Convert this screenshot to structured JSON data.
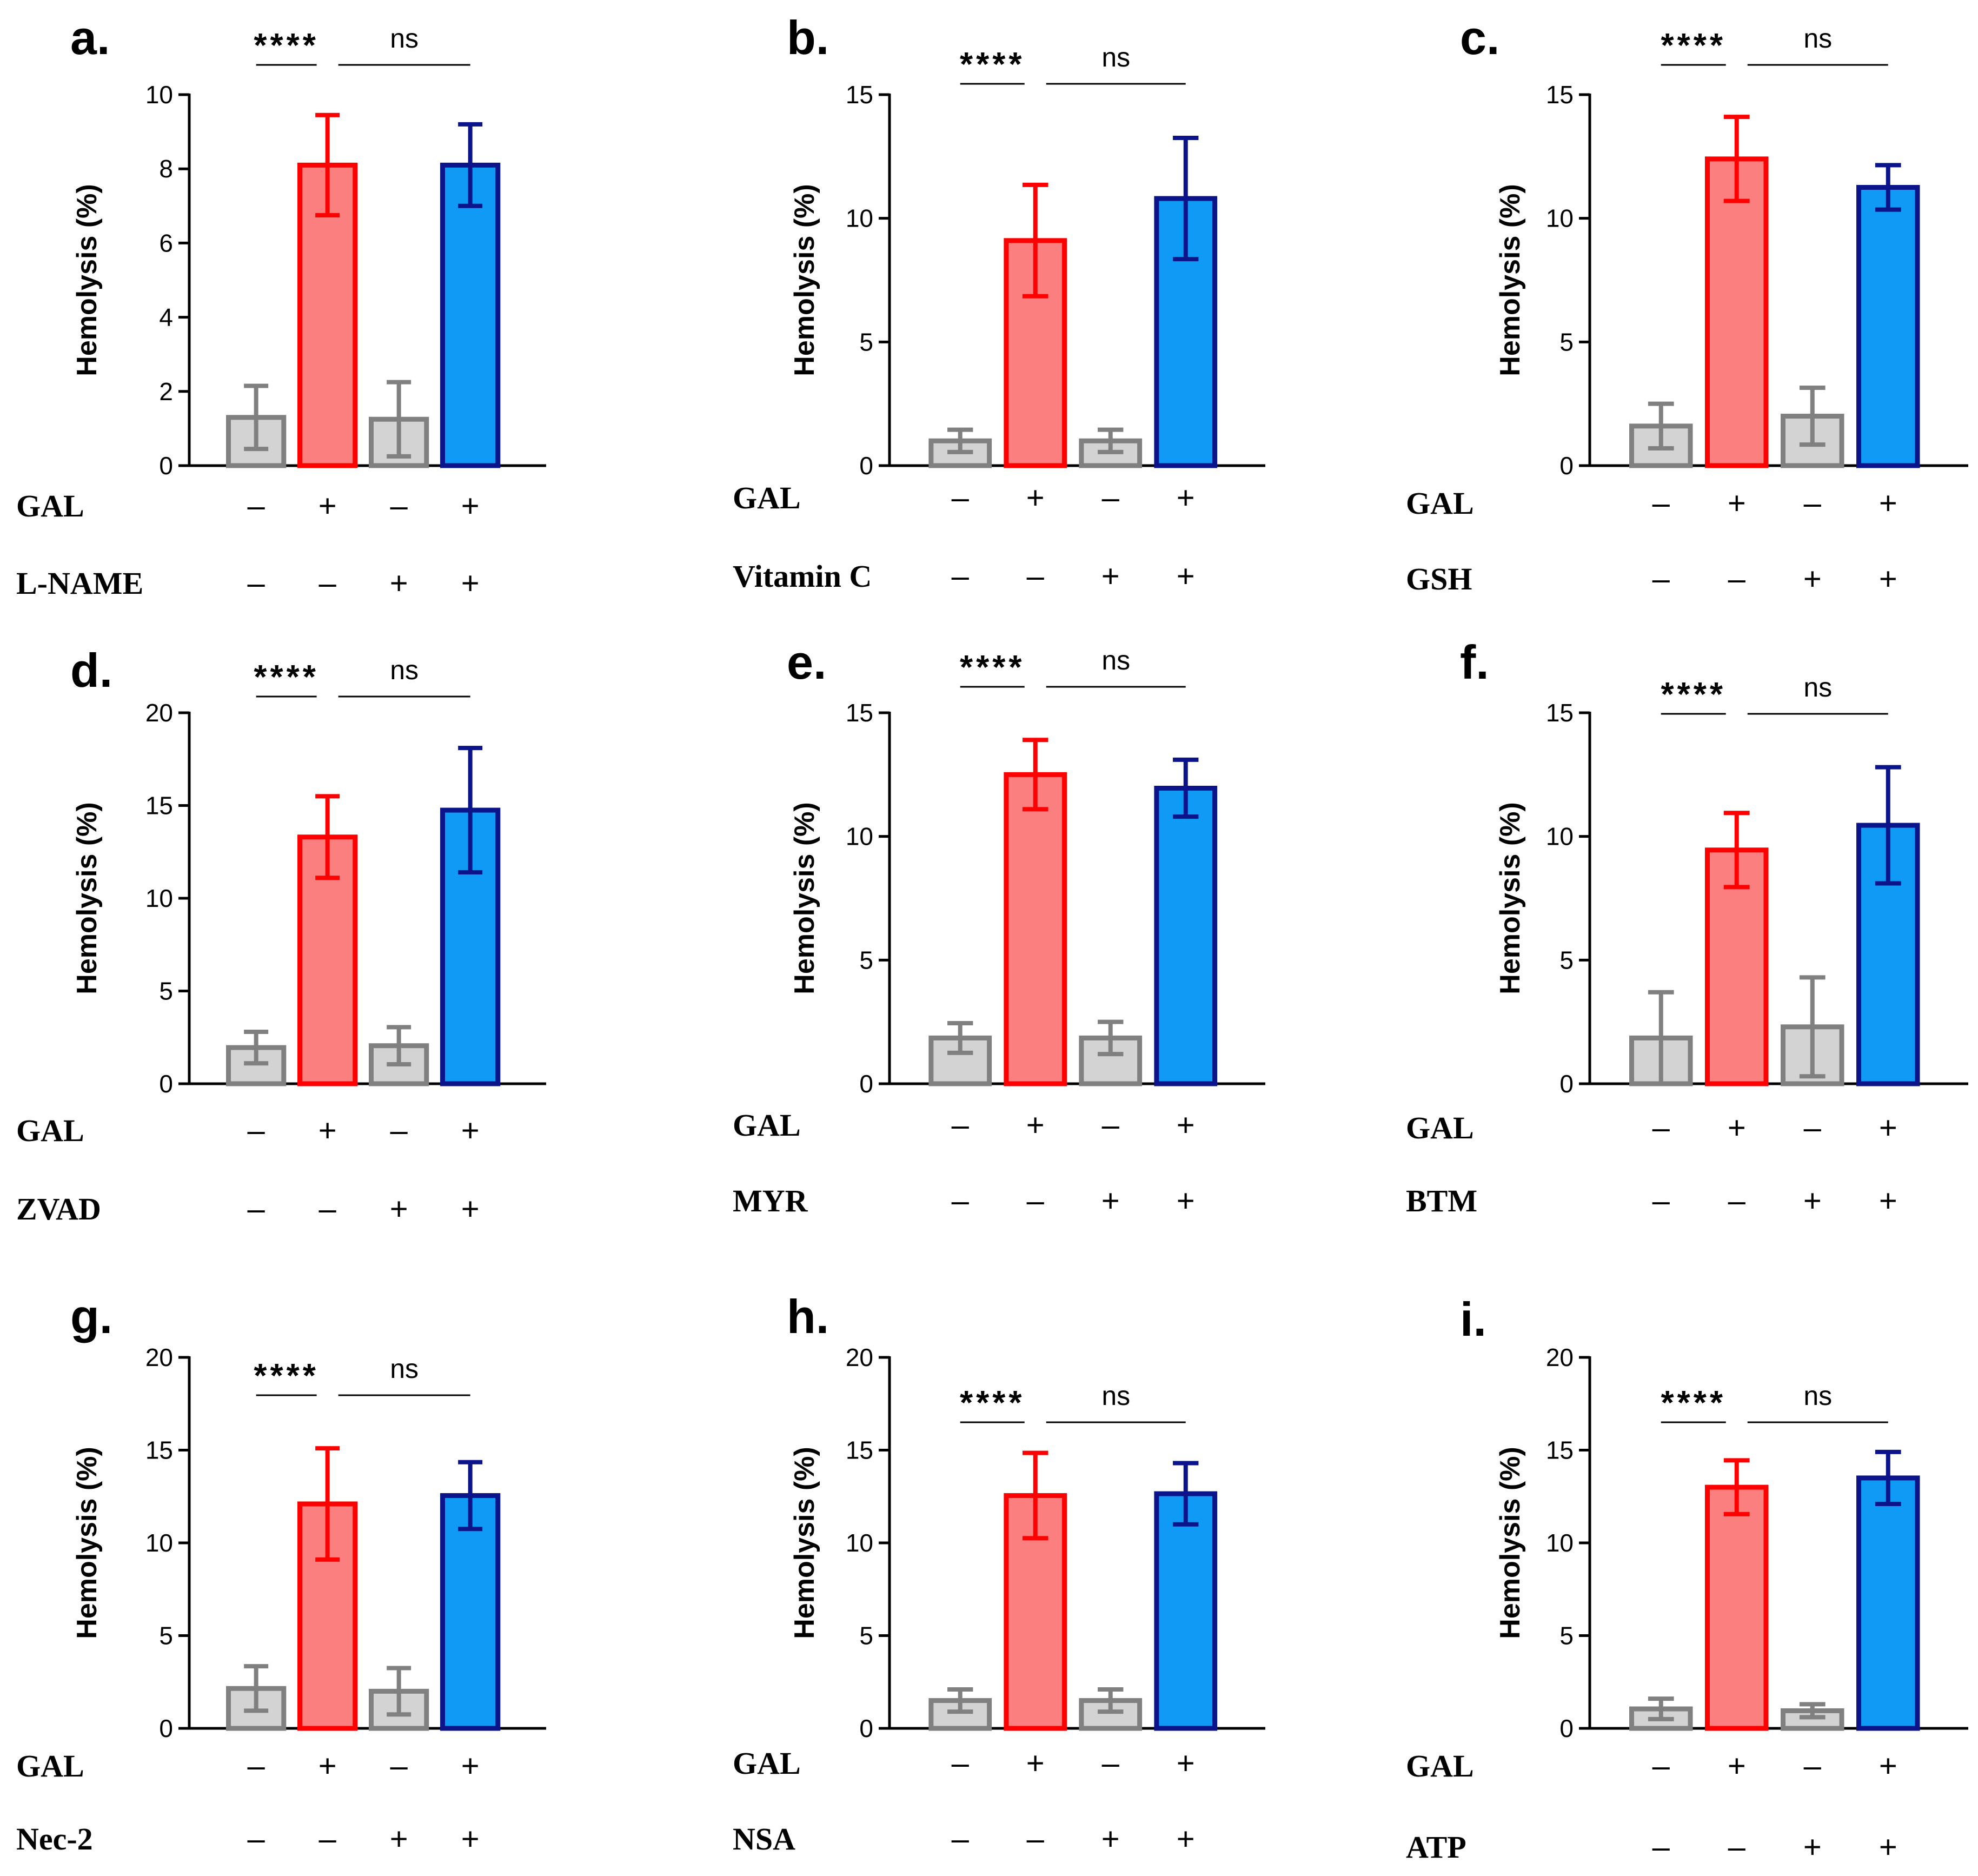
{
  "colors": {
    "control_fill": "#d3d3d3",
    "control_stroke": "#808080",
    "gal_fill": "#fb7f7f",
    "gal_stroke": "#ff0000",
    "combo_fill": "#0f9bf5",
    "combo_stroke": "#0b1488",
    "axis": "#000000"
  },
  "chart_data": [
    {
      "panel": "a.",
      "type": "bar",
      "ylabel": "Hemolysis (%)",
      "ylim": [
        0,
        10
      ],
      "yticks": [
        0,
        2,
        4,
        6,
        8,
        10
      ],
      "yticklabels": [
        "0",
        "2",
        "4",
        "6",
        "8",
        "10"
      ],
      "values": [
        1.3,
        8.1,
        1.25,
        8.1
      ],
      "errors": [
        0.85,
        1.35,
        1.0,
        1.1
      ],
      "significance": [
        "****",
        "ns"
      ],
      "rows": [
        {
          "label": "GAL",
          "signs": [
            "–",
            "+",
            "–",
            "+"
          ]
        },
        {
          "label": "L-NAME",
          "signs": [
            "–",
            "–",
            "+",
            "+"
          ]
        }
      ]
    },
    {
      "panel": "b.",
      "type": "bar",
      "ylabel": "Hemolysis (%)",
      "ylim": [
        0,
        15
      ],
      "yticks": [
        0,
        5,
        10,
        15
      ],
      "yticklabels": [
        "0",
        "5",
        "10",
        "15"
      ],
      "values": [
        1.0,
        9.1,
        1.0,
        10.8
      ],
      "errors": [
        0.45,
        2.25,
        0.45,
        2.45
      ],
      "significance": [
        "****",
        "ns"
      ],
      "rows": [
        {
          "label": "GAL",
          "signs": [
            "–",
            "+",
            "–",
            "+"
          ]
        },
        {
          "label": "Vitamin C",
          "signs": [
            "–",
            "–",
            "+",
            "+"
          ]
        }
      ]
    },
    {
      "panel": "c.",
      "type": "bar",
      "ylabel": "Hemolysis (%)",
      "ylim": [
        0,
        15
      ],
      "yticks": [
        0,
        5,
        10,
        15
      ],
      "yticklabels": [
        "0",
        "5",
        "10",
        "15"
      ],
      "values": [
        1.6,
        12.4,
        2.0,
        11.25
      ],
      "errors": [
        0.9,
        1.7,
        1.15,
        0.9
      ],
      "significance": [
        "****",
        "ns"
      ],
      "rows": [
        {
          "label": "GAL",
          "signs": [
            "–",
            "+",
            "–",
            "+"
          ]
        },
        {
          "label": "GSH",
          "signs": [
            "–",
            "–",
            "+",
            "+"
          ]
        }
      ]
    },
    {
      "panel": "d.",
      "type": "bar",
      "ylabel": "Hemolysis (%)",
      "ylim": [
        0,
        20
      ],
      "yticks": [
        0,
        5,
        10,
        15,
        20
      ],
      "yticklabels": [
        "0",
        "5",
        "10",
        "15",
        "20"
      ],
      "values": [
        1.95,
        13.3,
        2.05,
        14.75
      ],
      "errors": [
        0.85,
        2.2,
        1.0,
        3.35
      ],
      "significance": [
        "****",
        "ns"
      ],
      "rows": [
        {
          "label": "GAL",
          "signs": [
            "–",
            "+",
            "–",
            "+"
          ]
        },
        {
          "label": "ZVAD",
          "signs": [
            "–",
            "–",
            "+",
            "+"
          ]
        }
      ]
    },
    {
      "panel": "e.",
      "type": "bar",
      "ylabel": "Hemolysis (%)",
      "ylim": [
        0,
        15
      ],
      "yticks": [
        0,
        5,
        10,
        15
      ],
      "yticklabels": [
        "0",
        "5",
        "10",
        "15"
      ],
      "values": [
        1.85,
        12.5,
        1.85,
        11.95
      ],
      "errors": [
        0.6,
        1.4,
        0.65,
        1.15
      ],
      "significance": [
        "****",
        "ns"
      ],
      "rows": [
        {
          "label": "GAL",
          "signs": [
            "–",
            "+",
            "–",
            "+"
          ]
        },
        {
          "label": "MYR",
          "signs": [
            "–",
            "–",
            "+",
            "+"
          ]
        }
      ]
    },
    {
      "panel": "f.",
      "type": "bar",
      "ylabel": "Hemolysis (%)",
      "ylim": [
        0,
        15
      ],
      "yticks": [
        0,
        5,
        10,
        15
      ],
      "yticklabels": [
        "0",
        "5",
        "10",
        "15"
      ],
      "values": [
        1.85,
        9.45,
        2.3,
        10.45
      ],
      "errors": [
        1.85,
        1.5,
        2.0,
        2.35
      ],
      "significance": [
        "****",
        "ns"
      ],
      "rows": [
        {
          "label": "GAL",
          "signs": [
            "–",
            "+",
            "–",
            "+"
          ]
        },
        {
          "label": "BTM",
          "signs": [
            "–",
            "–",
            "+",
            "+"
          ]
        }
      ]
    },
    {
      "panel": "g.",
      "type": "bar",
      "ylabel": "Hemolysis (%)",
      "ylim": [
        0,
        20
      ],
      "yticks": [
        0,
        5,
        10,
        15,
        20
      ],
      "yticklabels": [
        "0",
        "5",
        "10",
        "15",
        "20"
      ],
      "values": [
        2.15,
        12.1,
        2.0,
        12.55
      ],
      "errors": [
        1.2,
        3.0,
        1.25,
        1.8
      ],
      "significance": [
        "****",
        "ns"
      ],
      "rows": [
        {
          "label": "GAL",
          "signs": [
            "–",
            "+",
            "–",
            "+"
          ]
        },
        {
          "label": "Nec-2",
          "signs": [
            "–",
            "–",
            "+",
            "+"
          ]
        }
      ]
    },
    {
      "panel": "h.",
      "type": "bar",
      "ylabel": "Hemolysis (%)",
      "ylim": [
        0,
        20
      ],
      "yticks": [
        0,
        5,
        10,
        15,
        20
      ],
      "yticklabels": [
        "0",
        "5",
        "10",
        "15",
        "20"
      ],
      "values": [
        1.5,
        12.55,
        1.5,
        12.65
      ],
      "errors": [
        0.6,
        2.3,
        0.6,
        1.65
      ],
      "significance": [
        "****",
        "ns"
      ],
      "rows": [
        {
          "label": "GAL",
          "signs": [
            "–",
            "+",
            "–",
            "+"
          ]
        },
        {
          "label": "NSA",
          "signs": [
            "–",
            "–",
            "+",
            "+"
          ]
        }
      ]
    },
    {
      "panel": "i.",
      "type": "bar",
      "ylabel": "Hemolysis (%)",
      "ylim": [
        0,
        20
      ],
      "yticks": [
        0,
        5,
        10,
        15,
        20
      ],
      "yticklabels": [
        "0",
        "5",
        "10",
        "15",
        "20"
      ],
      "values": [
        1.05,
        13.0,
        0.95,
        13.5
      ],
      "errors": [
        0.55,
        1.45,
        0.35,
        1.4
      ],
      "significance": [
        "****",
        "ns"
      ],
      "rows": [
        {
          "label": "GAL",
          "signs": [
            "–",
            "+",
            "–",
            "+"
          ]
        },
        {
          "label": "ATP",
          "signs": [
            "–",
            "–",
            "+",
            "+"
          ]
        }
      ]
    }
  ]
}
